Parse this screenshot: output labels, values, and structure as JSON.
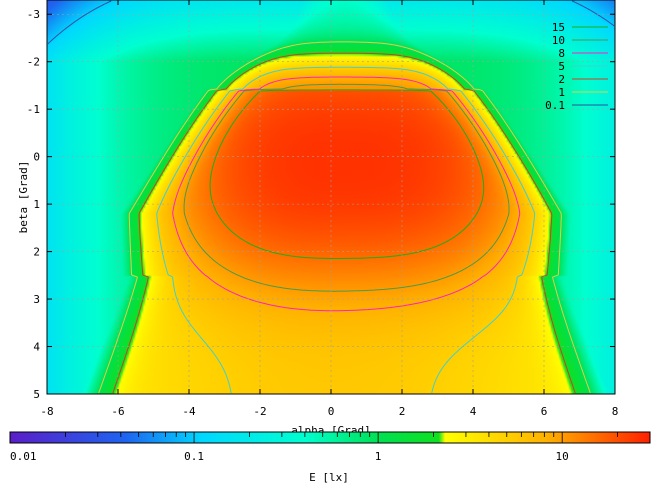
{
  "chart_data": {
    "type": "heatmap",
    "title": "",
    "xlabel": "alpha [Grad]",
    "ylabel": "beta [Grad]",
    "xlim": [
      -8,
      8
    ],
    "ylim": [
      -3.3,
      5
    ],
    "y_inverted": true,
    "x_ticks": [
      -8,
      -6,
      -4,
      -2,
      0,
      2,
      4,
      6,
      8
    ],
    "y_ticks": [
      -3,
      -2,
      -1,
      0,
      1,
      2,
      3,
      4,
      5
    ],
    "grid": true,
    "colorbar": {
      "label": "E [lx]",
      "scale": "log",
      "range": [
        0.01,
        30
      ],
      "tick_labels": [
        "0.01",
        "0.1",
        "1",
        "10"
      ],
      "tick_values": [
        0.01,
        0.1,
        1,
        10
      ]
    },
    "legend": {
      "placement": "top-right",
      "entries": [
        {
          "label": "15",
          "color": "#1aaf1a"
        },
        {
          "label": "10",
          "color": "#4a9a4a"
        },
        {
          "label": "8",
          "color": "#ff20c0"
        },
        {
          "label": "5",
          "color": "#40d0d0"
        },
        {
          "label": "2",
          "color": "#d04020"
        },
        {
          "label": "1",
          "color": "#e0d040"
        },
        {
          "label": "0.1",
          "color": "#3050a0"
        }
      ]
    },
    "contour_levels": [
      15,
      10,
      8,
      5,
      2,
      1,
      0.1
    ],
    "peak_value": 20,
    "peak_center": [
      0.5,
      0.1
    ]
  }
}
